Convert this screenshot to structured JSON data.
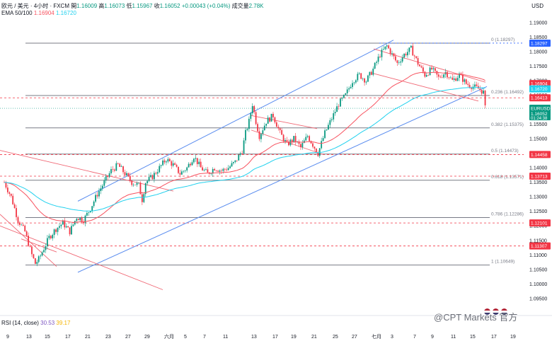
{
  "header": {
    "symbol": "欧元 / 美元 · 4小时 · FXCM",
    "open_label": "開",
    "open": "1.16009",
    "high_label": "高",
    "high": "1.16073",
    "low_label": "低",
    "low": "1.15967",
    "close_label": "收",
    "close": "1.16052",
    "change": "+0.00043 (+0.04%)",
    "volume_label": "成交量",
    "volume": "2.78K"
  },
  "ema": {
    "label": "EMA 50/100",
    "ema50": "1.16904",
    "ema100": "1.16720"
  },
  "currency": "USD",
  "rsi": {
    "label": "RSI (14, close)",
    "v1": "30.53",
    "v2": "39.17"
  },
  "watermark": "@CPT Markets 官方",
  "colors": {
    "up": "#089981",
    "down": "#f23645",
    "ema50": "#f7525f",
    "ema100": "#22d1ee",
    "channel": "#5b8def",
    "fib": "#787b86",
    "dashed": "#f23645"
  },
  "chart_data": {
    "type": "candlestick",
    "title": "欧元 / 美元 · 4小时 · FXCM",
    "ylim": [
      1.093,
      1.191
    ],
    "y_ticks": [
      "1.19000",
      "1.18500",
      "1.18000",
      "1.17500",
      "1.17000",
      "1.16500",
      "1.16000",
      "1.15500",
      "1.15000",
      "1.14500",
      "1.14000",
      "1.13500",
      "1.13000",
      "1.12500",
      "1.12000",
      "1.11500",
      "1.11000",
      "1.10500",
      "1.10000",
      "1.09500"
    ],
    "x_ticks": [
      "9",
      "13",
      "15",
      "17",
      "21",
      "23",
      "27",
      "29",
      "六月",
      "5",
      "7",
      "11",
      "13",
      "17",
      "19",
      "21",
      "25",
      "27",
      "七月",
      "3",
      "7",
      "9",
      "11",
      "15",
      "17",
      "19"
    ],
    "key_points": [
      [
        0,
        1.135
      ],
      [
        4,
        1.13
      ],
      [
        8,
        1.122
      ],
      [
        12,
        1.118
      ],
      [
        16,
        1.11
      ],
      [
        18,
        1.107
      ],
      [
        20,
        1.1085
      ],
      [
        22,
        1.111
      ],
      [
        26,
        1.116
      ],
      [
        30,
        1.119
      ],
      [
        34,
        1.121
      ],
      [
        38,
        1.118
      ],
      [
        42,
        1.123
      ],
      [
        46,
        1.122
      ],
      [
        50,
        1.126
      ],
      [
        54,
        1.131
      ],
      [
        58,
        1.135
      ],
      [
        62,
        1.139
      ],
      [
        66,
        1.141
      ],
      [
        70,
        1.138
      ],
      [
        74,
        1.135
      ],
      [
        78,
        1.134
      ],
      [
        80,
        1.129
      ],
      [
        82,
        1.135
      ],
      [
        86,
        1.137
      ],
      [
        90,
        1.14
      ],
      [
        94,
        1.143
      ],
      [
        98,
        1.141
      ],
      [
        102,
        1.138
      ],
      [
        106,
        1.14
      ],
      [
        110,
        1.144
      ],
      [
        114,
        1.14
      ],
      [
        118,
        1.138
      ],
      [
        122,
        1.14
      ],
      [
        126,
        1.139
      ],
      [
        130,
        1.14
      ],
      [
        134,
        1.142
      ],
      [
        138,
        1.146
      ],
      [
        140,
        1.152
      ],
      [
        142,
        1.156
      ],
      [
        144,
        1.162
      ],
      [
        146,
        1.156
      ],
      [
        148,
        1.151
      ],
      [
        152,
        1.156
      ],
      [
        156,
        1.158
      ],
      [
        160,
        1.152
      ],
      [
        164,
        1.148
      ],
      [
        168,
        1.15
      ],
      [
        172,
        1.147
      ],
      [
        176,
        1.151
      ],
      [
        180,
        1.147
      ],
      [
        182,
        1.145
      ],
      [
        186,
        1.152
      ],
      [
        190,
        1.157
      ],
      [
        194,
        1.162
      ],
      [
        198,
        1.165
      ],
      [
        202,
        1.17
      ],
      [
        206,
        1.172
      ],
      [
        210,
        1.17
      ],
      [
        214,
        1.174
      ],
      [
        218,
        1.179
      ],
      [
        222,
        1.182
      ],
      [
        224,
        1.18
      ],
      [
        228,
        1.176
      ],
      [
        232,
        1.179
      ],
      [
        236,
        1.181
      ],
      [
        240,
        1.176
      ],
      [
        244,
        1.172
      ],
      [
        248,
        1.174
      ],
      [
        252,
        1.171
      ],
      [
        256,
        1.173
      ],
      [
        260,
        1.17
      ],
      [
        264,
        1.172
      ],
      [
        268,
        1.169
      ],
      [
        272,
        1.168
      ],
      [
        276,
        1.167
      ],
      [
        278,
        1.166
      ],
      [
        279,
        1.1605
      ]
    ],
    "price_labels": [
      {
        "text": "1.18297",
        "value": 1.18297,
        "color": "#2962ff"
      },
      {
        "text": "1.16904",
        "value": 1.16904,
        "color": "#f23645"
      },
      {
        "text": "1.16720",
        "value": 1.1672,
        "color": "#22d1ee"
      },
      {
        "text": "1.16413",
        "value": 1.16413,
        "color": "#f23645"
      },
      {
        "text": "EURUSD",
        "value": 1.16052,
        "color": "#089981",
        "sub": "1.16052",
        "sub2": "01:24:38"
      },
      {
        "text": "1.14458",
        "value": 1.14458,
        "color": "#f23645"
      },
      {
        "text": "1.13713",
        "value": 1.13713,
        "color": "#f23645"
      },
      {
        "text": "1.12101",
        "value": 1.12101,
        "color": "#f23645"
      },
      {
        "text": "1.11307",
        "value": 1.11307,
        "color": "#f23645"
      }
    ],
    "fib_levels": [
      {
        "label": "0 (1.18297)",
        "value": 1.18297
      },
      {
        "label": "0.236 (1.16492)",
        "value": 1.16492
      },
      {
        "label": "0.382 (1.15375)",
        "value": 1.15375
      },
      {
        "label": "0.5 (1.14473)",
        "value": 1.14473
      },
      {
        "label": "0.618 (1.13571)",
        "value": 1.13571
      },
      {
        "label": "0.786 (1.12286)",
        "value": 1.12286
      },
      {
        "label": "1 (1.10649)",
        "value": 1.10649
      }
    ],
    "dashed_levels": [
      1.16413,
      1.14458,
      1.13713,
      1.12101,
      1.11307
    ],
    "ema50_label": "1.16904",
    "ema100_label": "1.16720"
  }
}
